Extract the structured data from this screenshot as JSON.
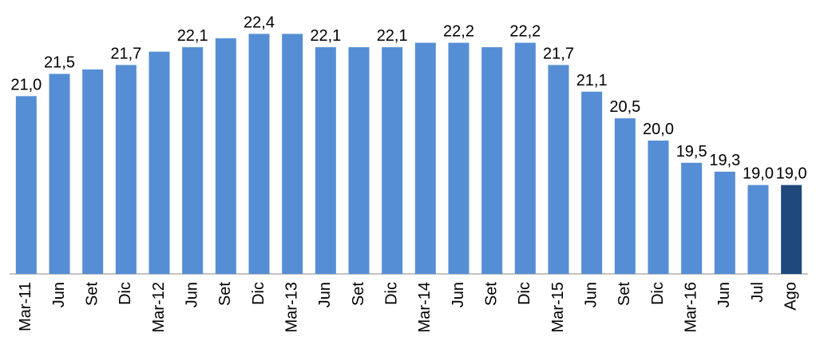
{
  "chart_data": {
    "type": "bar",
    "categories": [
      "Mar-11",
      "Jun",
      "Set",
      "Dic",
      "Mar-12",
      "Jun",
      "Set",
      "Dic",
      "Mar-13",
      "Jun",
      "Set",
      "Dic",
      "Mar-14",
      "Jun",
      "Set",
      "Dic",
      "Mar-15",
      "Jun",
      "Set",
      "Dic",
      "Mar-16",
      "Jun",
      "Jul",
      "Ago"
    ],
    "values": [
      21.0,
      21.5,
      21.6,
      21.7,
      22.0,
      22.1,
      22.3,
      22.4,
      22.4,
      22.1,
      22.1,
      22.1,
      22.2,
      22.2,
      22.1,
      22.2,
      21.7,
      21.1,
      20.5,
      20.0,
      19.5,
      19.3,
      19.0,
      19.0
    ],
    "value_labels": [
      "21,0",
      "21,5",
      null,
      "21,7",
      null,
      "22,1",
      null,
      "22,4",
      null,
      "22,1",
      null,
      "22,1",
      null,
      "22,2",
      null,
      "22,2",
      "21,7",
      "21,1",
      "20,5",
      "20,0",
      "19,5",
      "19,3",
      "19,0",
      "19,0"
    ],
    "colors": [
      "#558ed5",
      "#558ed5",
      "#558ed5",
      "#558ed5",
      "#558ed5",
      "#558ed5",
      "#558ed5",
      "#558ed5",
      "#558ed5",
      "#558ed5",
      "#558ed5",
      "#558ed5",
      "#558ed5",
      "#558ed5",
      "#558ed5",
      "#558ed5",
      "#558ed5",
      "#558ed5",
      "#558ed5",
      "#558ed5",
      "#558ed5",
      "#558ed5",
      "#558ed5",
      "#1f497d"
    ],
    "ylim": [
      17,
      23
    ]
  }
}
